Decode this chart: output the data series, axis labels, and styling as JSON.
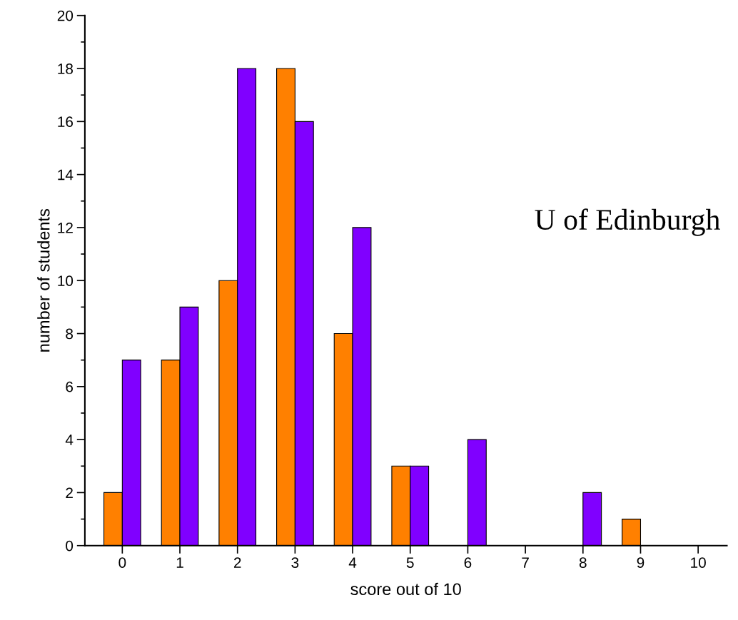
{
  "chart_data": {
    "type": "bar",
    "xlabel": "score out of 10",
    "ylabel": "number of students",
    "categories": [
      "0",
      "1",
      "2",
      "3",
      "4",
      "5",
      "6",
      "7",
      "8",
      "9",
      "10"
    ],
    "series": [
      {
        "color": "#ff8000",
        "values": [
          2,
          7,
          10,
          18,
          8,
          3,
          null,
          null,
          null,
          1,
          null
        ]
      },
      {
        "color": "#8000ff",
        "values": [
          7,
          9,
          18,
          16,
          12,
          3,
          4,
          null,
          2,
          null,
          null
        ]
      }
    ],
    "ylim": [
      0,
      20
    ],
    "yticks": [
      0,
      {
        "value": 1,
        "label": null
      },
      2,
      {
        "value": 3,
        "label": null
      },
      4,
      {
        "value": 5,
        "label": null
      },
      6,
      {
        "value": 7,
        "label": null
      },
      8,
      {
        "value": 9,
        "label": null
      },
      10,
      {
        "value": 11,
        "label": null
      },
      12,
      {
        "value": 13,
        "label": null
      },
      14,
      {
        "value": 15,
        "label": null
      },
      16,
      {
        "value": 17,
        "label": null
      },
      18,
      {
        "value": 19,
        "label": null
      },
      20
    ],
    "annotations": [
      "U of Edinburgh"
    ],
    "grid": false
  }
}
